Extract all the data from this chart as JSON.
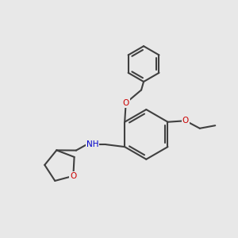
{
  "bg_color": "#e8e8e8",
  "bond_color": "#404040",
  "oxygen_color": "#cc0000",
  "nitrogen_color": "#0000cc",
  "lw": 1.5,
  "dbo": 0.012,
  "figsize": [
    3.0,
    3.0
  ],
  "dpi": 100,
  "xlim": [
    0,
    1
  ],
  "ylim": [
    0,
    1
  ]
}
